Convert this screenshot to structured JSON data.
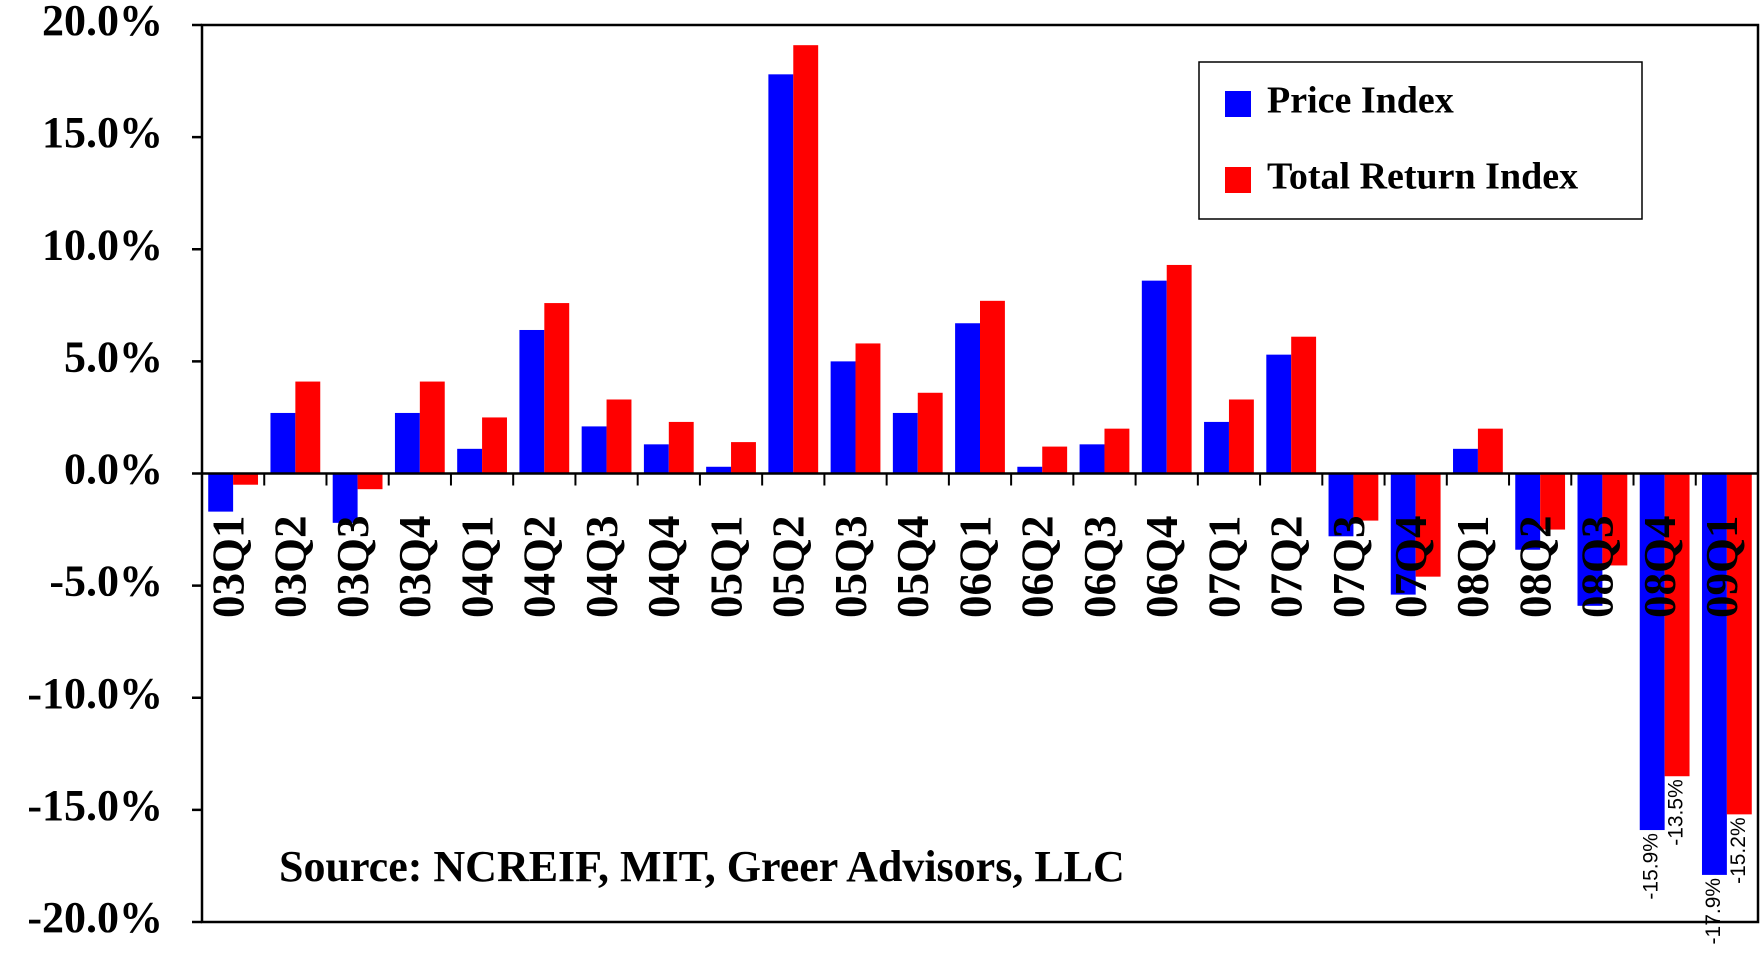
{
  "chart_data": {
    "type": "bar",
    "annotation": "Source: NCREIF, MIT, Greer Advisors, LLC",
    "categories": [
      "03Q1",
      "03Q2",
      "03Q3",
      "03Q4",
      "04Q1",
      "04Q2",
      "04Q3",
      "04Q4",
      "05Q1",
      "05Q2",
      "05Q3",
      "05Q4",
      "06Q1",
      "06Q2",
      "06Q3",
      "06Q4",
      "07Q1",
      "07Q2",
      "07Q3",
      "07Q4",
      "08Q1",
      "08Q2",
      "08Q3",
      "08Q4",
      "09Q1"
    ],
    "series": [
      {
        "name": "Price Index",
        "color": "#0000ff",
        "values": [
          -1.7,
          2.7,
          -2.2,
          2.7,
          1.1,
          6.4,
          2.1,
          1.3,
          0.3,
          17.8,
          5.0,
          2.7,
          6.7,
          0.3,
          1.3,
          8.6,
          2.3,
          5.3,
          -2.8,
          -5.4,
          1.1,
          -3.4,
          -5.9,
          -15.9,
          -17.9
        ],
        "value_labels": [
          null,
          null,
          null,
          null,
          null,
          null,
          null,
          null,
          null,
          null,
          null,
          null,
          null,
          null,
          null,
          null,
          null,
          null,
          null,
          null,
          null,
          null,
          null,
          "-15.9%",
          "-17.9%"
        ]
      },
      {
        "name": "Total Return Index",
        "color": "#ff0000",
        "values": [
          -0.5,
          4.1,
          -0.7,
          4.1,
          2.5,
          7.6,
          3.3,
          2.3,
          1.4,
          19.1,
          5.8,
          3.6,
          7.7,
          1.2,
          2.0,
          9.3,
          3.3,
          6.1,
          -2.1,
          -4.6,
          2.0,
          -2.5,
          -4.1,
          -13.5,
          -15.2
        ],
        "value_labels": [
          null,
          null,
          null,
          null,
          null,
          null,
          null,
          null,
          null,
          null,
          null,
          null,
          null,
          null,
          null,
          null,
          null,
          null,
          null,
          null,
          null,
          null,
          null,
          "-13.5%",
          "-15.2%"
        ]
      }
    ],
    "ylim": [
      -20,
      20
    ],
    "yticks": [
      {
        "value": -20,
        "label": "-20.0%"
      },
      {
        "value": -15,
        "label": "-15.0%"
      },
      {
        "value": -10,
        "label": "-10.0%"
      },
      {
        "value": -5,
        "label": "-5.0%"
      },
      {
        "value": 0,
        "label": "0.0%"
      },
      {
        "value": 5,
        "label": "5.0%"
      },
      {
        "value": 10,
        "label": "10.0%"
      },
      {
        "value": 15,
        "label": "15.0%"
      },
      {
        "value": 20,
        "label": "20.0%"
      }
    ],
    "grid": false,
    "legend": "top-right"
  }
}
